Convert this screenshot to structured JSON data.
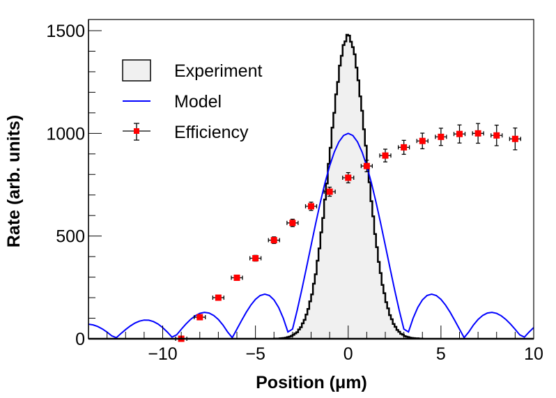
{
  "chart_data": {
    "type": "line",
    "title": "",
    "xlabel": "Position  (μm)",
    "ylabel": "Rate  (arb. units)",
    "xlim": [
      -14,
      10
    ],
    "ylim": [
      0,
      1550
    ],
    "grid": false,
    "x_ticks": [
      {
        "value": -10,
        "label": "−10"
      },
      {
        "value": -5,
        "label": "−5"
      },
      {
        "value": 0,
        "label": "0"
      },
      {
        "value": 5,
        "label": "5"
      },
      {
        "value": 10,
        "label": "10"
      }
    ],
    "y_ticks": [
      {
        "value": 0,
        "label": "0"
      },
      {
        "value": 500,
        "label": "500"
      },
      {
        "value": 1000,
        "label": "1000"
      },
      {
        "value": 1500,
        "label": "1500"
      }
    ],
    "legend": {
      "placement": "top-left",
      "entries": [
        {
          "label": "Experiment",
          "style": "filled-box"
        },
        {
          "label": "Model",
          "style": "line"
        },
        {
          "label": "Efficiency",
          "style": "marker-errorbar"
        }
      ]
    },
    "series": [
      {
        "name": "Experiment",
        "type": "histogram",
        "color": "#000000",
        "fill": "#f0f0f0",
        "bin_low": -4.0,
        "bin_width": 0.1,
        "counts": [
          1,
          1,
          1,
          2,
          3,
          4,
          5,
          8,
          10,
          14,
          19,
          26,
          32,
          45,
          56,
          75,
          92,
          118,
          145,
          182,
          216,
          268,
          314,
          380,
          440,
          518,
          588,
          678,
          756,
          852,
          930,
          1028,
          1100,
          1190,
          1250,
          1330,
          1378,
          1430,
          1448,
          1480,
          1476,
          1446,
          1420,
          1385,
          1320,
          1258,
          1180,
          1110,
          1020,
          940,
          845,
          762,
          670,
          596,
          510,
          446,
          374,
          320,
          262,
          222,
          178,
          148,
          115,
          95,
          72,
          58,
          43,
          34,
          24,
          20,
          13,
          10,
          8,
          5,
          4,
          3,
          2,
          2,
          1,
          1
        ]
      },
      {
        "name": "Model",
        "type": "line",
        "color": "#0000ff",
        "function": "1000*|sin(x)/x|",
        "x_step": 0.25
      },
      {
        "name": "Efficiency",
        "type": "scatter-errorbar",
        "color": "#ff0000",
        "x": [
          -9,
          -8,
          -7,
          -6,
          -5,
          -4,
          -3,
          -2,
          -1,
          0,
          1,
          2,
          3,
          4,
          5,
          6,
          7,
          8,
          9
        ],
        "y": [
          0,
          105,
          200,
          297,
          392,
          480,
          564,
          645,
          716,
          784,
          841,
          892,
          932,
          963,
          983,
          997,
          1000,
          990,
          973
        ],
        "x_err": [
          0.3,
          0.3,
          0.3,
          0.3,
          0.3,
          0.3,
          0.3,
          0.3,
          0.3,
          0.3,
          0.3,
          0.3,
          0.3,
          0.3,
          0.3,
          0.3,
          0.3,
          0.3,
          0.3
        ],
        "y_err": [
          0,
          8,
          10,
          12,
          14,
          16,
          18,
          20,
          22,
          25,
          28,
          31,
          34,
          38,
          42,
          44,
          48,
          50,
          53
        ]
      }
    ]
  }
}
